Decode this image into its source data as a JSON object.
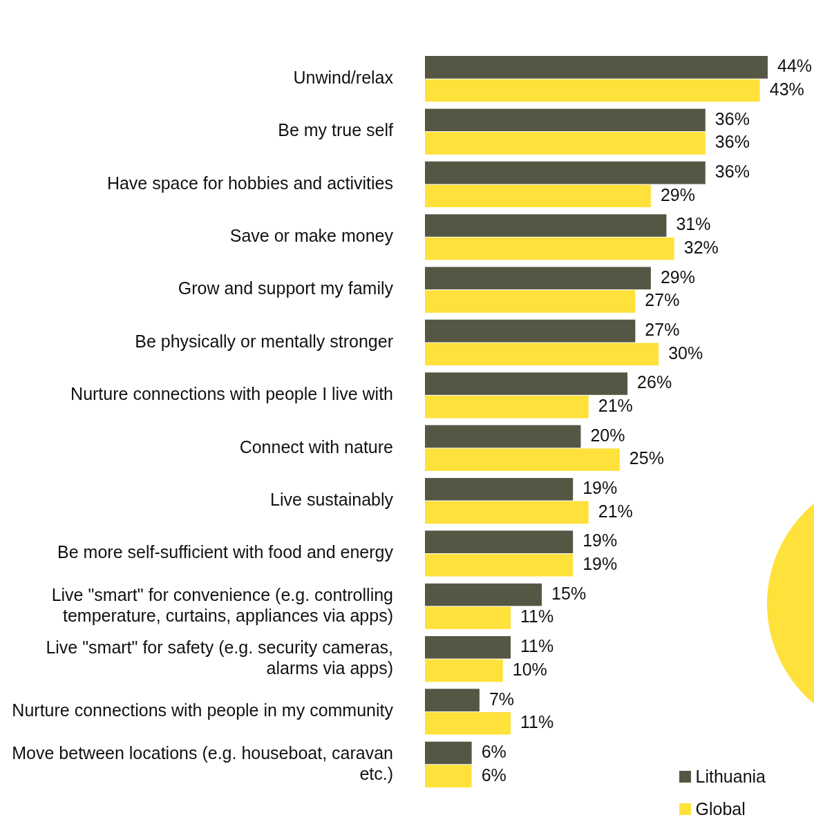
{
  "chart_data": {
    "type": "bar",
    "orientation": "horizontal",
    "legend": "bottom right",
    "tick_labels": "y",
    "categories": [
      "Unwind/relax",
      "Be my true self",
      "Have space for hobbies and activities",
      "Save or make money",
      "Grow and support my family",
      "Be physically or mentally stronger",
      "Nurture connections with people I live with",
      "Connect with nature",
      "Live sustainably",
      "Be more self-sufficient with food and energy",
      "Live \"smart\" for convenience (e.g. controlling temperature, curtains, appliances via apps)",
      "Live \"smart\" for safety (e.g. security cameras, alarms via apps)",
      "Nurture connections with people in my community",
      "Move between locations (e.g. houseboat, caravan etc.)"
    ],
    "series": [
      {
        "name": "Lithuania",
        "color": "#555744",
        "values": [
          44,
          36,
          36,
          31,
          29,
          27,
          26,
          20,
          19,
          19,
          15,
          11,
          7,
          6
        ],
        "value_labels": [
          "44%",
          "36%",
          "36%",
          "31%",
          "29%",
          "27%",
          "26%",
          "20%",
          "19%",
          "19%",
          "15%",
          "11%",
          "7%",
          "6%"
        ]
      },
      {
        "name": "Global",
        "color": "#ffe13c",
        "values": [
          43,
          36,
          29,
          32,
          27,
          30,
          21,
          25,
          21,
          19,
          11,
          10,
          11,
          6
        ],
        "value_labels": [
          "43%",
          "36%",
          "29%",
          "32%",
          "27%",
          "30%",
          "21%",
          "25%",
          "21%",
          "19%",
          "11%",
          "10%",
          "11%",
          "6%"
        ]
      }
    ]
  }
}
